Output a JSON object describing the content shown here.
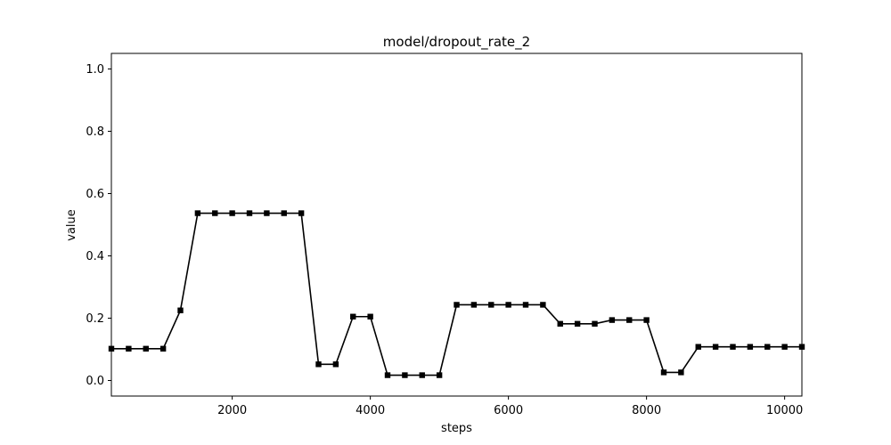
{
  "chart_data": {
    "type": "line",
    "title": "model/dropout_rate_2",
    "xlabel": "steps",
    "ylabel": "value",
    "xlim": [
      250,
      10250
    ],
    "ylim": [
      -0.05,
      1.05
    ],
    "xticks": [
      2000,
      4000,
      6000,
      8000,
      10000
    ],
    "yticks": [
      0.0,
      0.2,
      0.4,
      0.6,
      0.8,
      1.0
    ],
    "ytick_labels": [
      "0.0",
      "0.2",
      "0.4",
      "0.6",
      "0.8",
      "1.0"
    ],
    "grid": false,
    "marker": "square",
    "color": "#000000",
    "x": [
      250,
      500,
      750,
      1000,
      1250,
      1500,
      1750,
      2000,
      2250,
      2500,
      2750,
      3000,
      3250,
      3500,
      3750,
      4000,
      4250,
      4500,
      4750,
      5000,
      5250,
      5500,
      5750,
      6000,
      6250,
      6500,
      6750,
      7000,
      7250,
      7500,
      7750,
      8000,
      8250,
      8500,
      8750,
      9000,
      9250,
      9500,
      9750,
      10000,
      10250
    ],
    "y": [
      0.102,
      0.102,
      0.102,
      0.102,
      0.225,
      0.537,
      0.537,
      0.537,
      0.537,
      0.537,
      0.537,
      0.537,
      0.052,
      0.052,
      0.205,
      0.205,
      0.017,
      0.017,
      0.017,
      0.017,
      0.243,
      0.243,
      0.243,
      0.243,
      0.243,
      0.243,
      0.182,
      0.182,
      0.182,
      0.194,
      0.194,
      0.194,
      0.026,
      0.026,
      0.108,
      0.108,
      0.108,
      0.108,
      0.108,
      0.108,
      0.108
    ]
  }
}
